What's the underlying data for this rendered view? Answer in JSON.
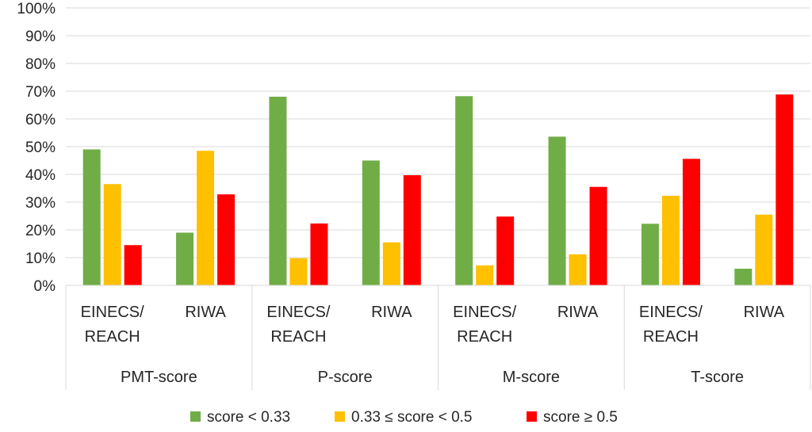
{
  "chart_data": {
    "type": "bar",
    "title": "",
    "xlabel": "",
    "ylabel": "",
    "ylim": [
      0,
      100
    ],
    "yticks": [
      "0%",
      "10%",
      "20%",
      "30%",
      "40%",
      "50%",
      "60%",
      "70%",
      "80%",
      "90%",
      "100%"
    ],
    "grid": true,
    "legend_position": "bottom",
    "groups": [
      {
        "label": "PMT-score",
        "subcategories": [
          "EINECS/\nREACH",
          "RIWA"
        ]
      },
      {
        "label": "P-score",
        "subcategories": [
          "EINECS/\nREACH",
          "RIWA"
        ]
      },
      {
        "label": "M-score",
        "subcategories": [
          "EINECS/\nREACH",
          "RIWA"
        ]
      },
      {
        "label": "T-score",
        "subcategories": [
          "EINECS/\nREACH",
          "RIWA"
        ]
      }
    ],
    "categories": [
      "PMT-score EINECS/REACH",
      "PMT-score RIWA",
      "P-score EINECS/REACH",
      "P-score RIWA",
      "M-score EINECS/REACH",
      "M-score RIWA",
      "T-score EINECS/REACH",
      "T-score RIWA"
    ],
    "series": [
      {
        "name": "score < 0.33",
        "color": "#70ad47",
        "values": [
          49,
          19,
          68,
          45,
          68.2,
          53.6,
          22.2,
          6
        ]
      },
      {
        "name": "0.33 ≤ score < 0.5",
        "color": "#ffc000",
        "values": [
          36.5,
          48.5,
          9.8,
          15.5,
          7.2,
          11.2,
          32.3,
          25.5
        ]
      },
      {
        "name": "score ≥ 0.5",
        "color": "#ff0000",
        "values": [
          14.5,
          32.8,
          22.3,
          39.7,
          24.8,
          35.5,
          45.6,
          68.8
        ]
      }
    ]
  }
}
